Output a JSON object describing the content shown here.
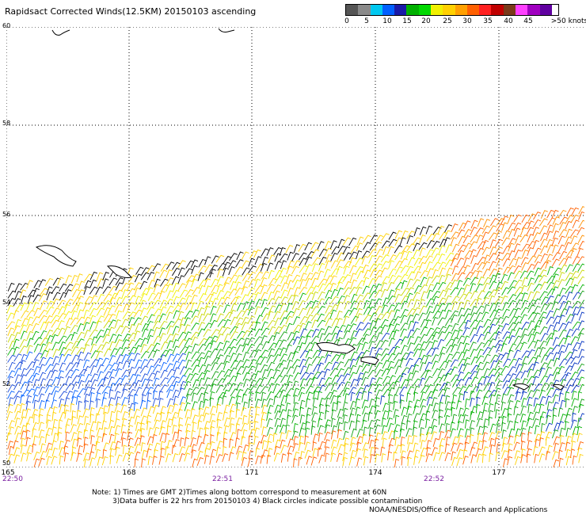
{
  "title": "Rapidsact Corrected Winds(12.5KM) 20150103 ascending",
  "legend": {
    "colors": [
      "#555555",
      "#8a8a8a",
      "#00c8f0",
      "#0060ff",
      "#1a1aa8",
      "#00b000",
      "#00d800",
      "#f0f000",
      "#ffd000",
      "#ffa000",
      "#ff6000",
      "#ff2020",
      "#c00000",
      "#7a3a1a",
      "#ff40ff",
      "#a000c0",
      "#6000a0"
    ],
    "labels": [
      "0",
      "5",
      "10",
      "15",
      "20",
      "25",
      "30",
      "35",
      "40",
      "45",
      ">50 knots"
    ]
  },
  "map": {
    "lat_labels": [
      "60",
      "58",
      "56",
      "54",
      "52",
      "50"
    ],
    "lon_labels": [
      "165",
      "168",
      "171",
      "174",
      "177"
    ],
    "time_labels": [
      "22:50",
      "22:51",
      "22:52"
    ]
  },
  "notes": {
    "line1": "Note: 1) Times are GMT 2)Times along bottom correspond to measurement at 60N",
    "line2": "3)Data buffer is 22 hrs from 20150103 4) Black circles indicate possible contamination",
    "line3": "NOAA/NESDIS/Office of Research and Applications"
  }
}
